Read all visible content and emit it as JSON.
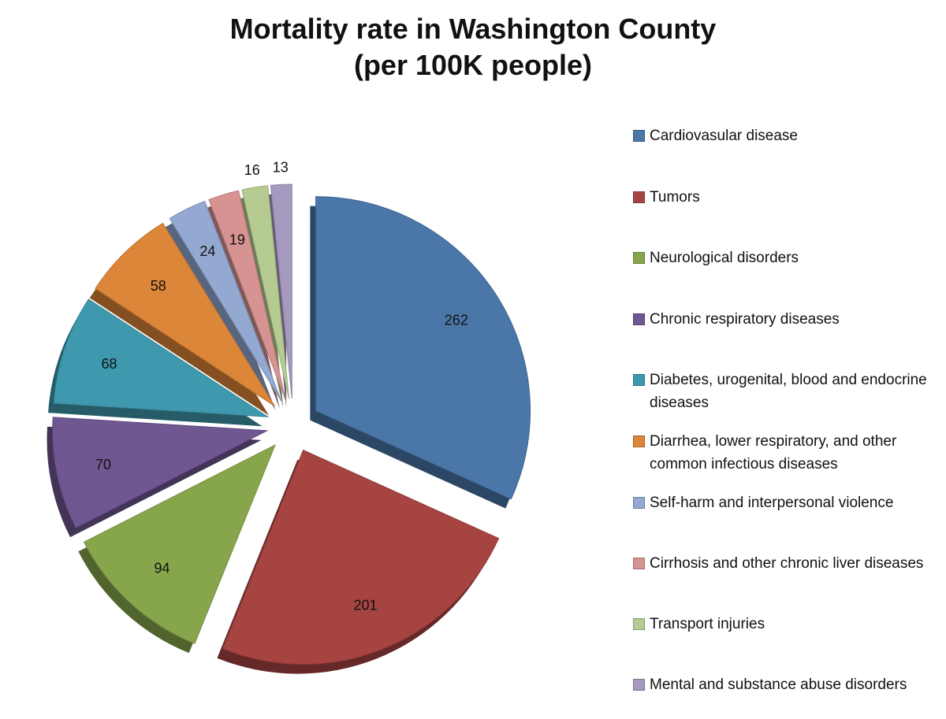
{
  "chart_data": {
    "type": "pie",
    "title_lines": [
      "Mortality rate in Washington County",
      "(per 100K people)"
    ],
    "legend_position": "right",
    "exploded": true,
    "style": "3d",
    "categories": [
      "Cardiovasular disease",
      "Tumors",
      "Neurological disorders",
      "Chronic respiratory diseases",
      "Diabetes, urogenital, blood and endocrine diseases",
      "Diarrhea, lower respiratory, and other common infectious diseases",
      "Self-harm and interpersonal violence",
      "Cirrhosis and other chronic liver diseases",
      "Transport injuries",
      "Mental and substance abuse disorders"
    ],
    "values": [
      262,
      201,
      94,
      70,
      68,
      58,
      24,
      19,
      16,
      13
    ],
    "colors": [
      "#4a76a8",
      "#a64442",
      "#87a64c",
      "#6f5791",
      "#3f99ae",
      "#dc8639",
      "#93a9d2",
      "#d69392",
      "#b6cb91",
      "#a699bf"
    ]
  }
}
